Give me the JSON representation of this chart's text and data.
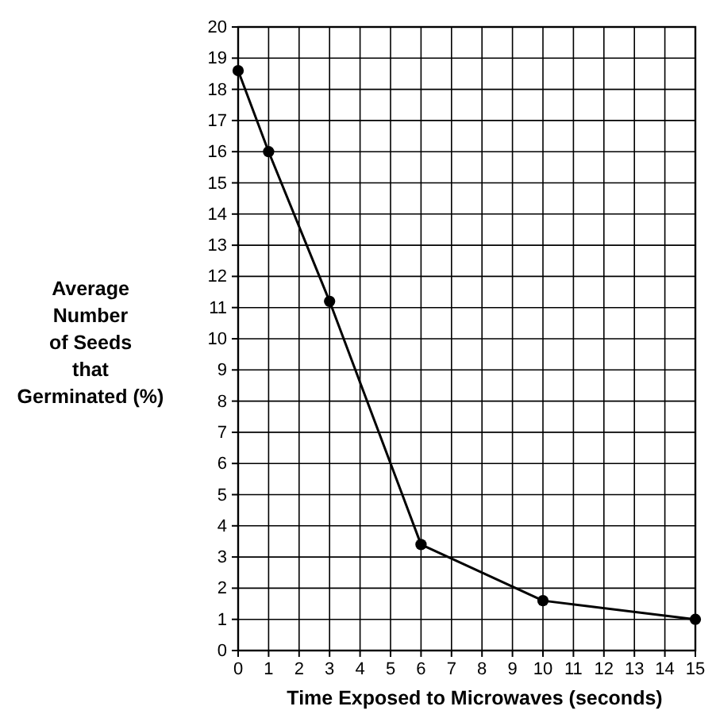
{
  "chart_data": {
    "type": "line",
    "xlabel": "Time Exposed to Microwaves (seconds)",
    "ylabel": "Average Number of Seeds that Germinated (%)",
    "x": [
      0,
      1,
      3,
      6,
      10,
      15
    ],
    "series": [
      {
        "color": "#000000",
        "values": [
          18.6,
          16,
          11.2,
          3.4,
          1.6,
          1.0
        ]
      }
    ],
    "xlim": [
      0,
      15
    ],
    "xticks": [
      0,
      1,
      2,
      3,
      4,
      5,
      6,
      7,
      8,
      9,
      10,
      11,
      12,
      13,
      14,
      15
    ],
    "ylim": [
      0,
      20
    ],
    "yticks": [
      0,
      1,
      2,
      3,
      4,
      5,
      6,
      7,
      8,
      9,
      10,
      11,
      12,
      13,
      14,
      15,
      16,
      17,
      18,
      19,
      20
    ],
    "grid": true,
    "marker": "circle",
    "line_style": "solid"
  }
}
